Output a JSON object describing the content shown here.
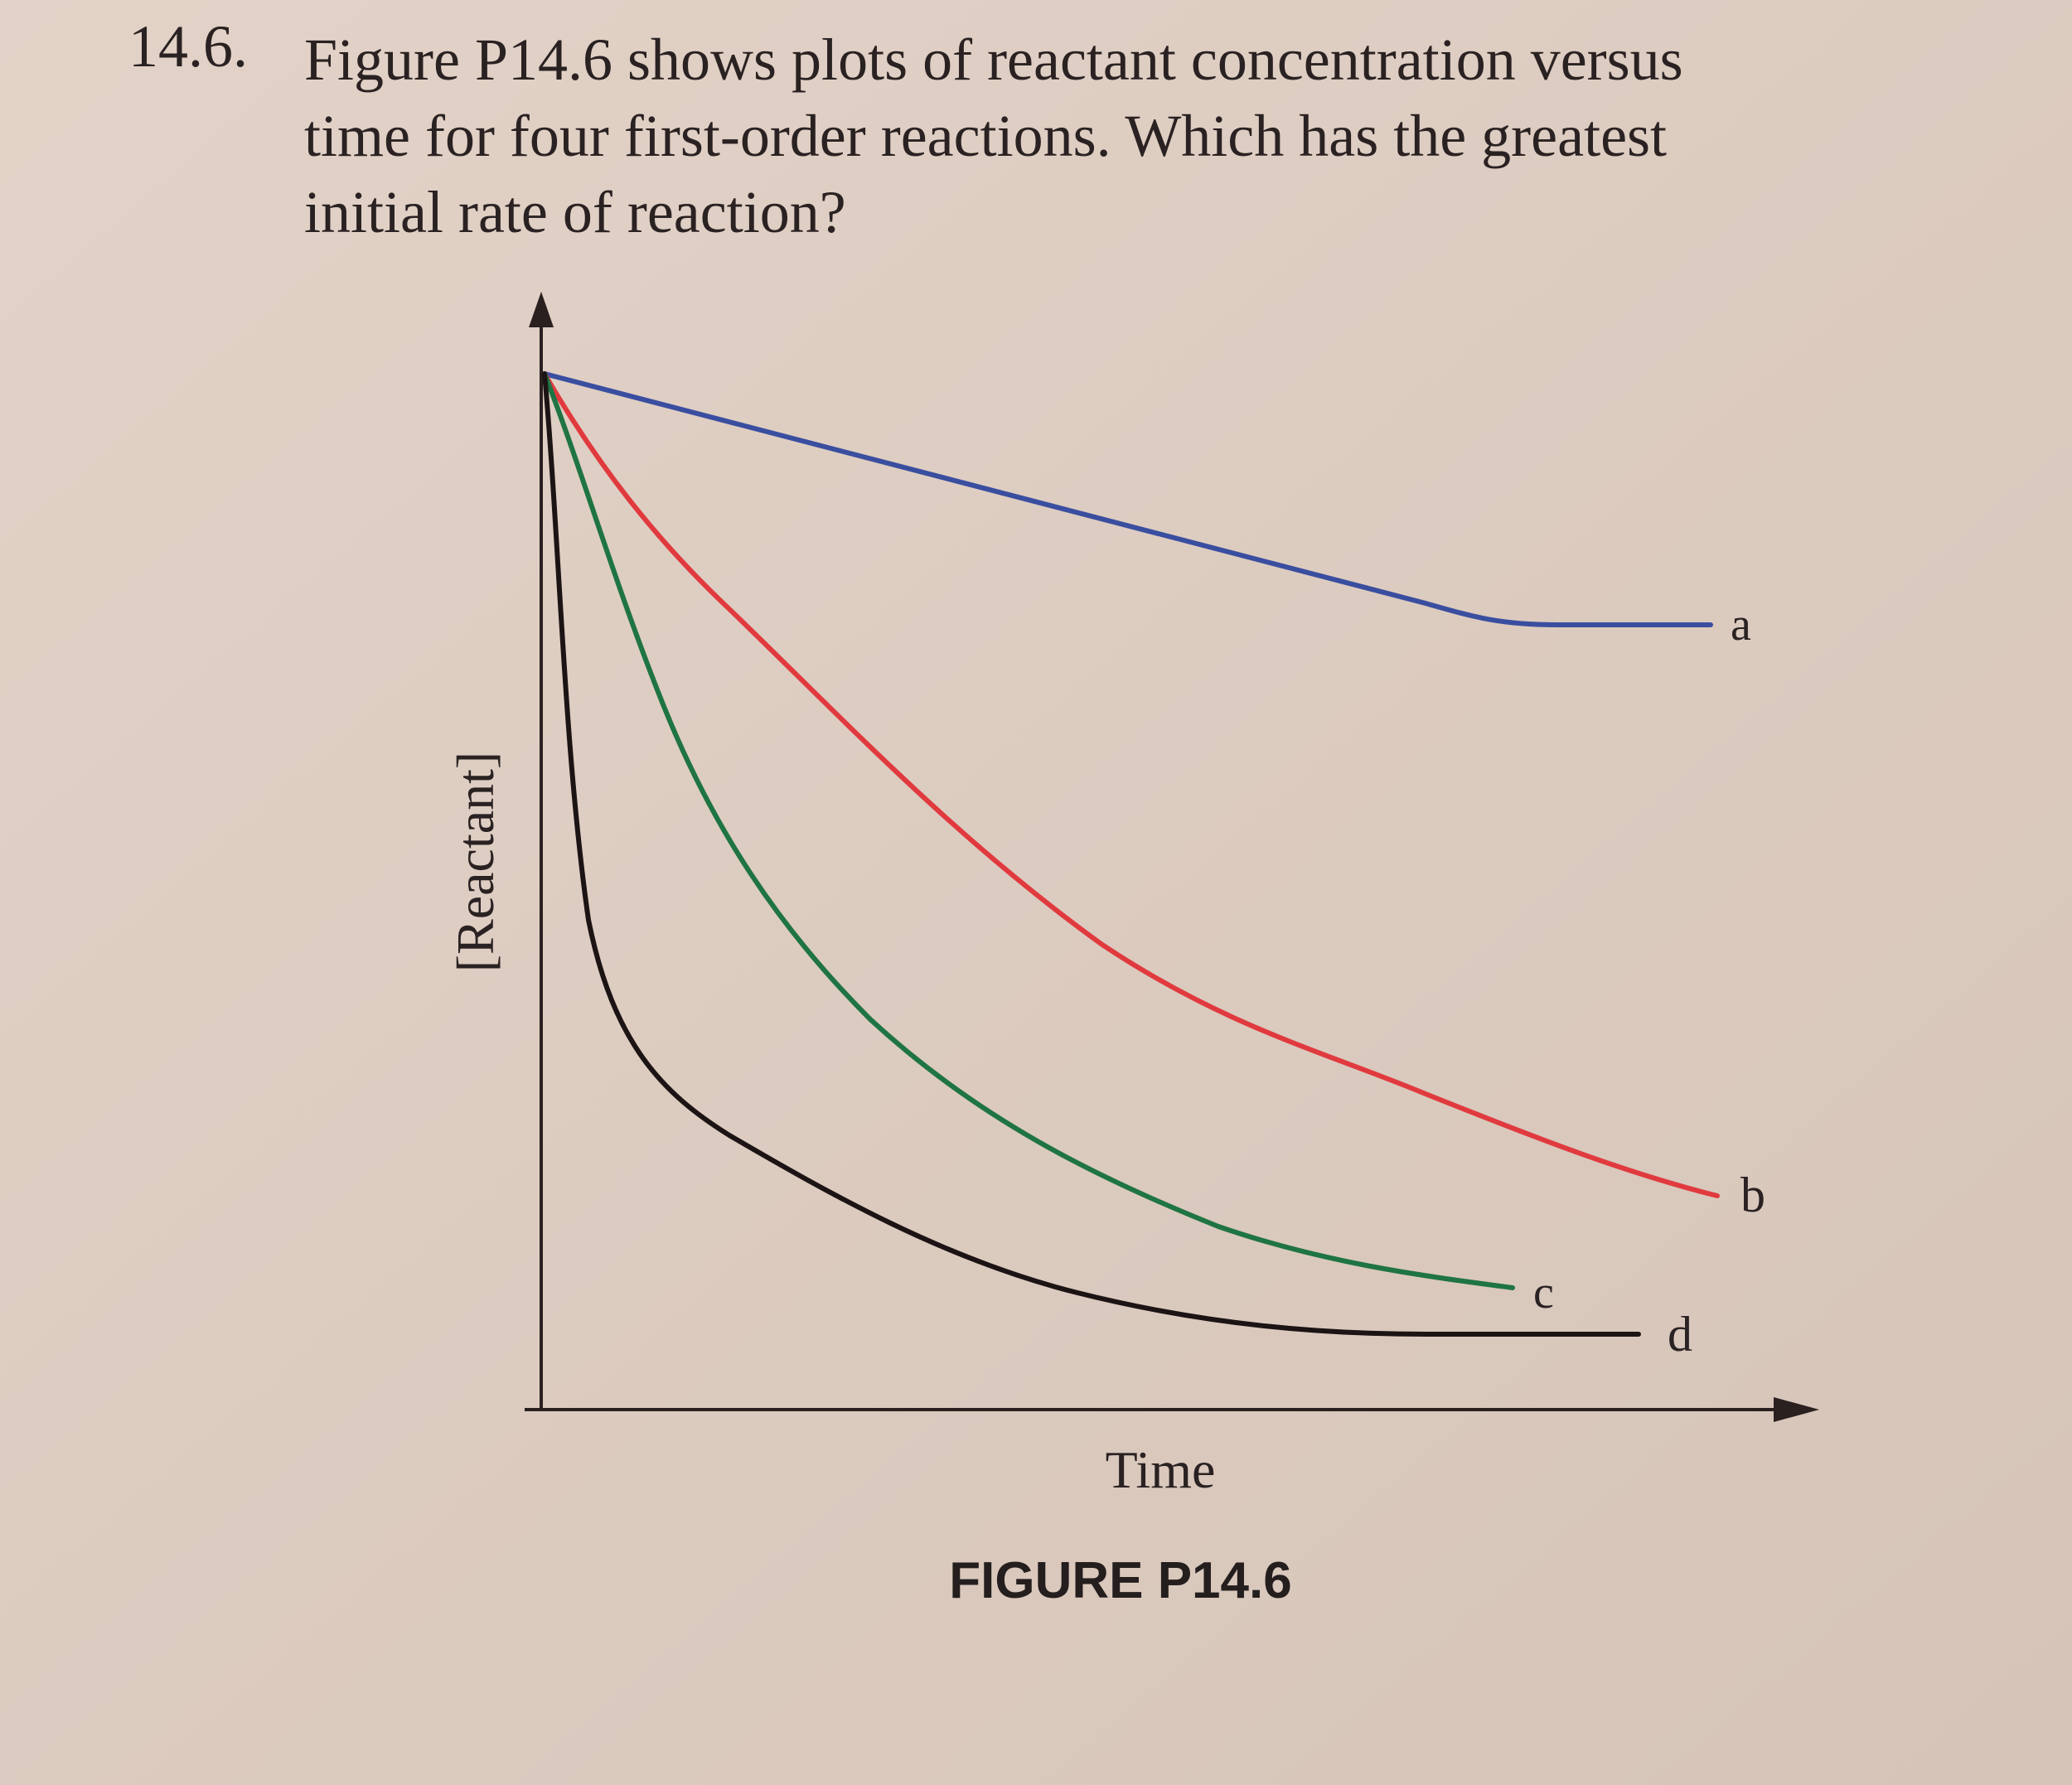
{
  "question": {
    "number": "14.6.",
    "lines": [
      "Figure P14.6 shows plots of reactant concentration versus",
      "time for four first-order reactions. Which has the greatest",
      "initial rate of reaction?"
    ]
  },
  "figure": {
    "y_label": "[Reactant]",
    "x_label": "Time",
    "curve_labels": [
      "a",
      "b",
      "c",
      "d"
    ],
    "caption": "FIGURE P14.6"
  }
}
